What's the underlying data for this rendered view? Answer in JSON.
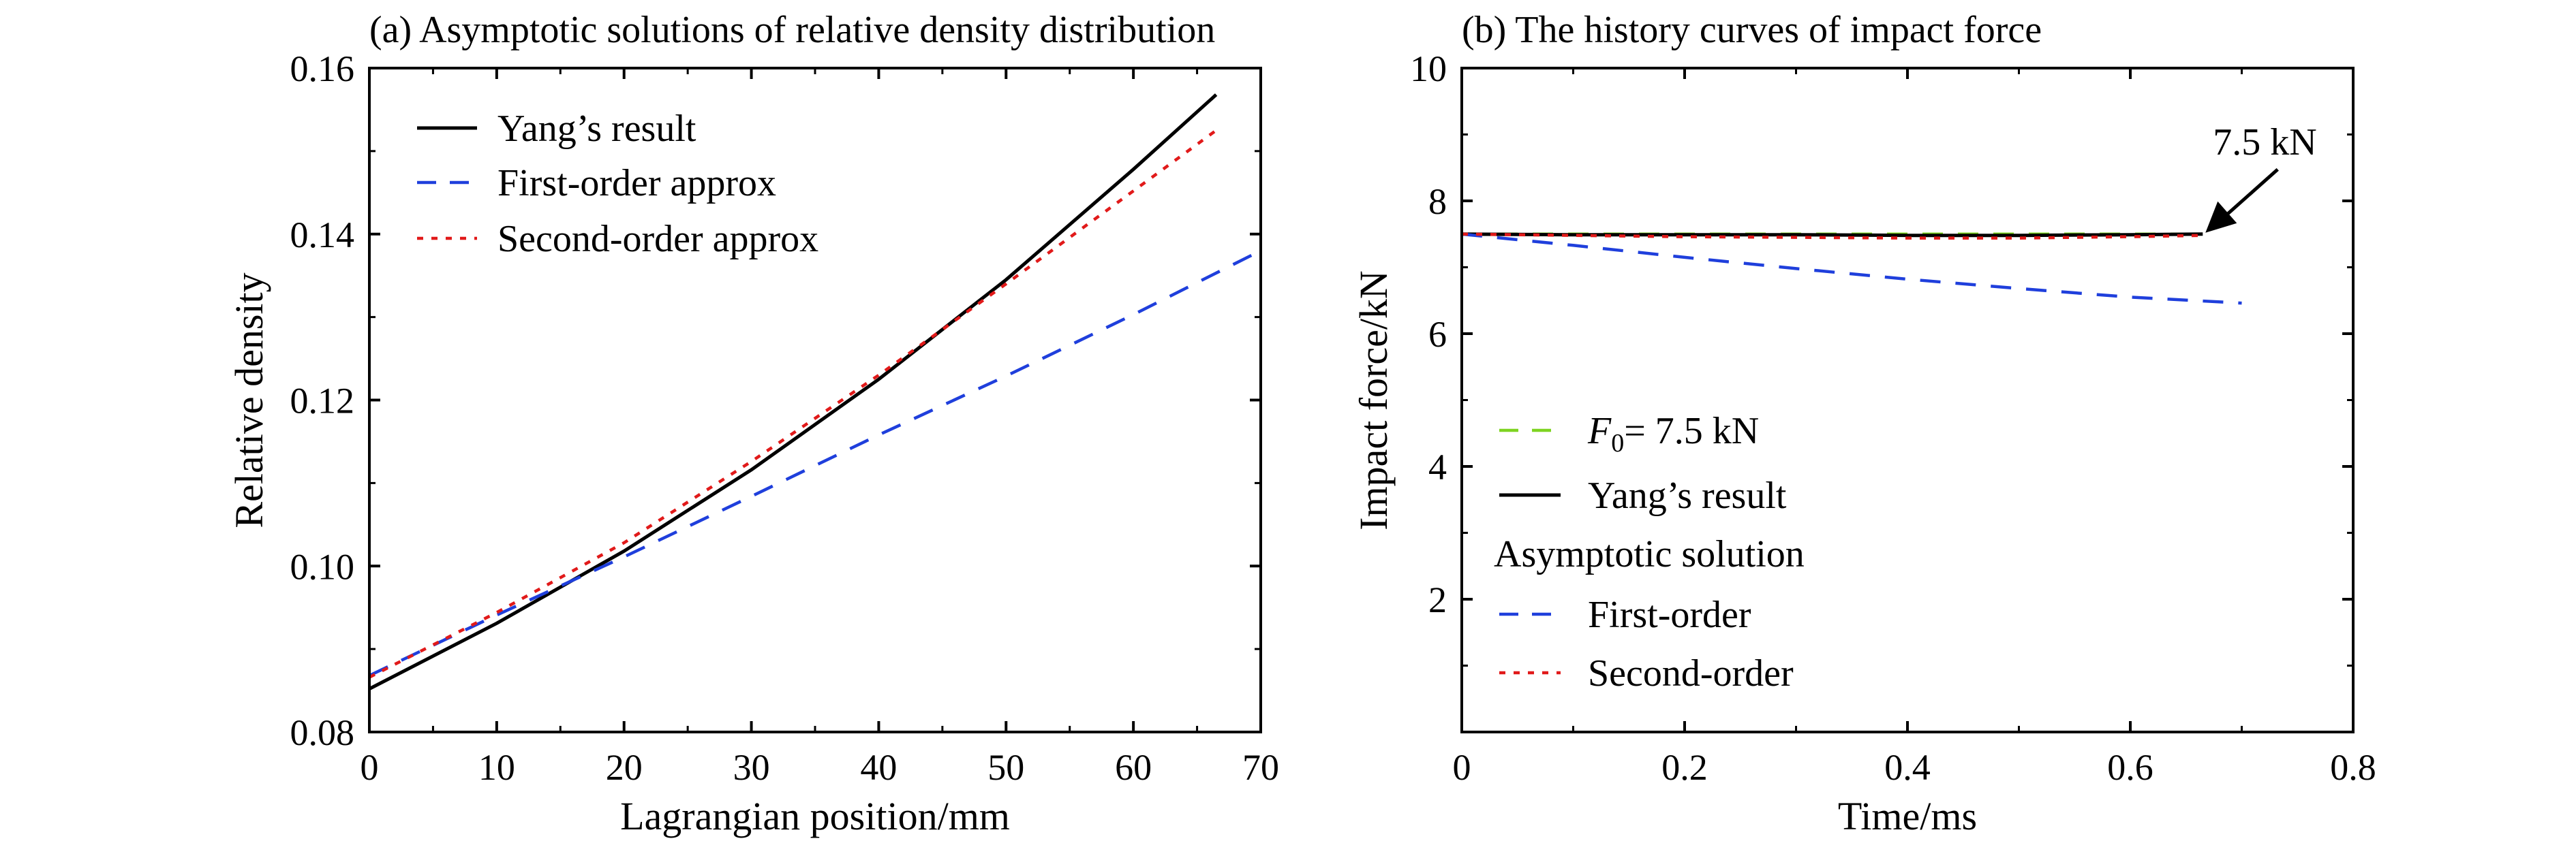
{
  "chart_data": [
    {
      "type": "line",
      "title": "(a) Asymptotic solutions of relative density distribution",
      "xlabel": "Lagrangian position/mm",
      "ylabel": "Relative density",
      "xlim": [
        0,
        70
      ],
      "ylim": [
        0.08,
        0.16
      ],
      "xticks": [
        0,
        10,
        20,
        30,
        40,
        50,
        60,
        70
      ],
      "yticks": [
        0.08,
        0.1,
        0.12,
        0.14,
        0.16
      ],
      "xtick_labels": [
        "0",
        "10",
        "20",
        "30",
        "40",
        "50",
        "60",
        "70"
      ],
      "ytick_labels": [
        "0.08",
        "0.10",
        "0.12",
        "0.14",
        "0.16"
      ],
      "grid": false,
      "legend_position": "top-left",
      "series": [
        {
          "name": "Yang’s result",
          "color": "#000000",
          "dash": "solid",
          "x": [
            0,
            10,
            20,
            30,
            40,
            50,
            60,
            66.5
          ],
          "y": [
            0.0852,
            0.0931,
            0.1018,
            0.1116,
            0.1225,
            0.1345,
            0.1478,
            0.1568
          ]
        },
        {
          "name": "First-order approx",
          "color": "#1f3fdc",
          "dash": "dashed",
          "x": [
            0,
            10,
            20,
            30,
            40,
            50,
            60,
            70
          ],
          "y": [
            0.0868,
            0.0941,
            0.1011,
            0.1084,
            0.1158,
            0.1229,
            0.1303,
            0.138
          ]
        },
        {
          "name": "Second-order approx",
          "color": "#e11a1a",
          "dash": "dotted",
          "x": [
            0,
            10,
            20,
            30,
            40,
            50,
            60,
            66.5
          ],
          "y": [
            0.0866,
            0.0944,
            0.1028,
            0.1126,
            0.123,
            0.134,
            0.1452,
            0.1525
          ]
        }
      ]
    },
    {
      "type": "line",
      "title": "(b) The history curves of impact force",
      "xlabel": "Time/ms",
      "ylabel": "Impact force/kN",
      "xlim": [
        0,
        0.8
      ],
      "ylim": [
        0,
        10
      ],
      "xticks": [
        0,
        0.2,
        0.4,
        0.6,
        0.8
      ],
      "yticks": [
        2,
        4,
        6,
        8,
        10
      ],
      "xtick_labels": [
        "0",
        "0.2",
        "0.4",
        "0.6",
        "0.8"
      ],
      "ytick_labels": [
        "2",
        "4",
        "6",
        "8",
        "10"
      ],
      "grid": false,
      "legend_position": "bottom-left",
      "legend_group_label": "Asymptotic solution",
      "annotation": {
        "text": "7.5 kN",
        "x": 0.665,
        "y": 7.5
      },
      "series": [
        {
          "name_prefix": "F",
          "name_sub": "0",
          "name": "= 7.5 kN",
          "color": "#7ed321",
          "dash": "dashed",
          "x": [
            0,
            0.665
          ],
          "y": [
            7.5,
            7.5
          ]
        },
        {
          "name": "Yang’s result",
          "color": "#000000",
          "dash": "solid",
          "x": [
            0,
            0.1,
            0.2,
            0.3,
            0.4,
            0.5,
            0.6,
            0.665
          ],
          "y": [
            7.5,
            7.49,
            7.49,
            7.49,
            7.48,
            7.48,
            7.49,
            7.5
          ]
        },
        {
          "name": "First-order",
          "color": "#1f3fdc",
          "dash": "dashed",
          "x": [
            0,
            0.1,
            0.2,
            0.3,
            0.4,
            0.5,
            0.6,
            0.7
          ],
          "y": [
            7.5,
            7.33,
            7.15,
            6.98,
            6.82,
            6.68,
            6.55,
            6.46
          ]
        },
        {
          "name": "Second-order",
          "color": "#e11a1a",
          "dash": "dotted",
          "x": [
            0,
            0.1,
            0.2,
            0.3,
            0.4,
            0.5,
            0.6,
            0.665
          ],
          "y": [
            7.5,
            7.48,
            7.46,
            7.45,
            7.44,
            7.44,
            7.46,
            7.48
          ]
        }
      ]
    }
  ]
}
